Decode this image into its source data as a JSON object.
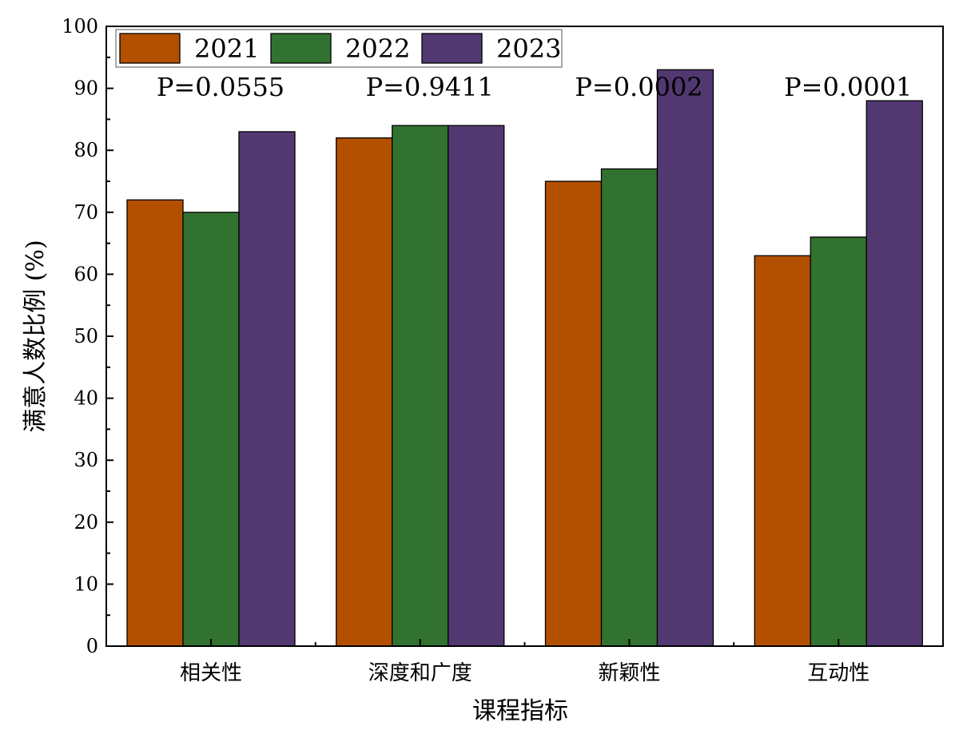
{
  "chart_data": {
    "type": "bar",
    "categories": [
      "相关性",
      "深度和广度",
      "新颖性",
      "互动性"
    ],
    "series": [
      {
        "name": "2021",
        "color": "#b35000",
        "values": [
          72,
          82,
          75,
          63
        ]
      },
      {
        "name": "2022",
        "color": "#327230",
        "values": [
          70,
          84,
          77,
          66
        ]
      },
      {
        "name": "2023",
        "color": "#523871",
        "values": [
          83,
          84,
          93,
          88
        ]
      }
    ],
    "annotations": [
      "P=0.0555",
      "P=0.9411",
      "P=0.0002",
      "P=0.0001"
    ],
    "xlabel": "课程指标",
    "ylabel": "满意人数比例 (%)",
    "ylim": [
      0,
      100
    ],
    "yticks": [
      0,
      10,
      20,
      30,
      40,
      50,
      60,
      70,
      80,
      90,
      100
    ],
    "legend_position": "top-left",
    "grid": false
  }
}
